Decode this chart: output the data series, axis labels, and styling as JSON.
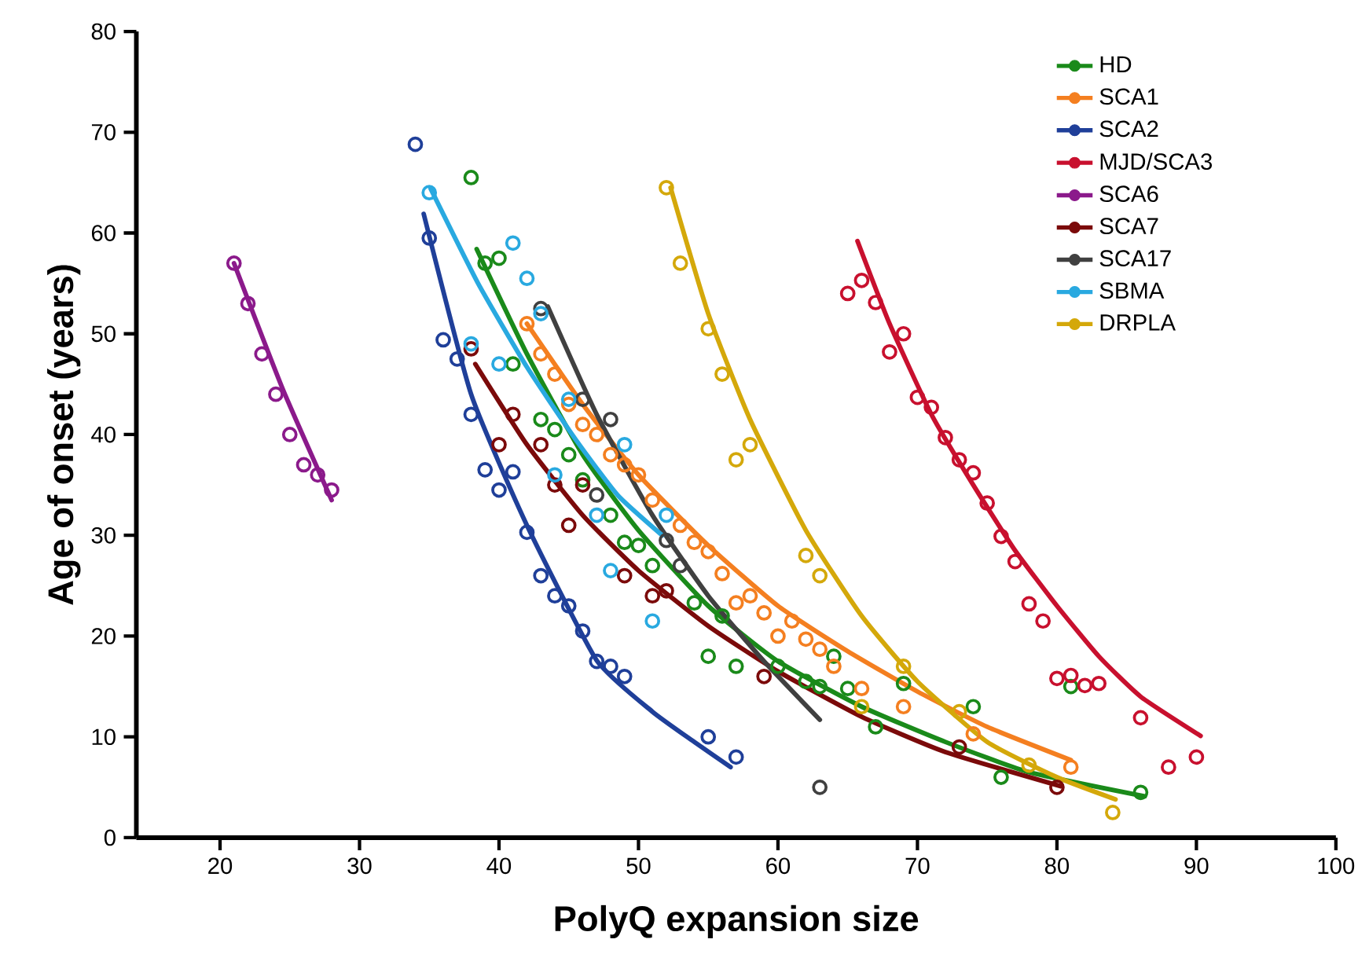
{
  "chart_data": {
    "type": "scatter",
    "xlabel": "PolyQ expansion size",
    "ylabel": "Age of onset (years)",
    "xlim": [
      14,
      100
    ],
    "ylim": [
      0,
      80
    ],
    "xticks": [
      20,
      30,
      40,
      50,
      60,
      70,
      80,
      90,
      100
    ],
    "yticks": [
      0,
      10,
      20,
      30,
      40,
      50,
      60,
      70,
      80
    ],
    "legend": "top right",
    "line_style": "solid",
    "series": [
      {
        "name": "HD",
        "type": "scatter",
        "marker": "circle",
        "color": "#1a8a1a",
        "x": [
          38,
          39,
          40,
          41,
          43,
          44,
          45,
          46,
          48,
          49,
          50,
          51,
          54,
          55,
          56,
          57,
          60,
          62,
          63,
          64,
          65,
          67,
          69,
          74,
          76,
          81,
          86
        ],
        "values": [
          65.5,
          57,
          57.5,
          47,
          41.5,
          40.5,
          38,
          35.5,
          32,
          29.3,
          29,
          27,
          23.3,
          18,
          22,
          17,
          17,
          15.5,
          15,
          18,
          14.8,
          11,
          15.3,
          13,
          6,
          15,
          4.5
        ]
      },
      {
        "type": "line",
        "marker": "none",
        "color": "#1a8a1a",
        "x": [
          38.4,
          42,
          46,
          50,
          55,
          60,
          66,
          72,
          78,
          86.3
        ],
        "values": [
          58.4,
          48,
          38,
          30.5,
          23,
          17.5,
          13,
          9.5,
          6.5,
          4.1
        ]
      },
      {
        "name": "SCA1",
        "type": "scatter",
        "marker": "circle",
        "color": "#f47f20",
        "x": [
          42,
          43,
          44,
          45,
          46,
          47,
          48,
          49,
          50,
          51,
          53,
          54,
          55,
          56,
          57,
          58,
          59,
          60,
          61,
          62,
          63,
          64,
          66,
          69,
          74,
          81
        ],
        "values": [
          51,
          48,
          46,
          43,
          41,
          40,
          38,
          37,
          36,
          33.5,
          31,
          29.3,
          28.4,
          26.2,
          23.3,
          24,
          22.3,
          20,
          21.5,
          19.7,
          18.7,
          17,
          14.8,
          13,
          10.3,
          7
        ]
      },
      {
        "type": "line",
        "marker": "none",
        "color": "#f47f20",
        "x": [
          42,
          46,
          50,
          55,
          60,
          65,
          70,
          75,
          81
        ],
        "values": [
          51,
          43,
          36,
          29,
          23,
          18.5,
          14.5,
          11,
          7.7
        ]
      },
      {
        "name": "SCA2",
        "type": "scatter",
        "marker": "circle",
        "color": "#1f3f99",
        "x": [
          34,
          35,
          36,
          37,
          38,
          39,
          40,
          41,
          42,
          43,
          44,
          45,
          46,
          47,
          48,
          49,
          55,
          57
        ],
        "values": [
          68.8,
          59.5,
          49.4,
          47.5,
          42,
          36.5,
          34.5,
          36.3,
          30.3,
          26,
          24,
          23,
          20.5,
          17.5,
          17,
          16,
          10,
          8
        ]
      },
      {
        "type": "line",
        "marker": "none",
        "color": "#1f3f99",
        "x": [
          34.6,
          38,
          42,
          47,
          51,
          54,
          56.6
        ],
        "values": [
          61.9,
          44,
          31,
          17.6,
          12.5,
          9.5,
          7
        ]
      },
      {
        "name": "MJD/SCA3",
        "type": "scatter",
        "marker": "circle",
        "color": "#c8102e",
        "x": [
          65,
          66,
          67,
          68,
          69,
          70,
          71,
          72,
          73,
          74,
          75,
          76,
          77,
          78,
          79,
          80,
          81,
          82,
          83,
          86,
          88,
          90
        ],
        "values": [
          54,
          55.3,
          53.1,
          48.2,
          50,
          43.7,
          42.7,
          39.7,
          37.5,
          36.2,
          33.2,
          29.9,
          27.4,
          23.2,
          21.5,
          15.8,
          16.1,
          15.1,
          15.3,
          11.9,
          7,
          8
        ]
      },
      {
        "type": "line",
        "marker": "none",
        "color": "#c8102e",
        "x": [
          65.7,
          68,
          71,
          74,
          77,
          80,
          83,
          86,
          90.3
        ],
        "values": [
          59.2,
          51,
          42,
          35,
          28.5,
          23,
          18,
          14,
          10.1
        ]
      },
      {
        "name": "SCA6",
        "type": "scatter",
        "marker": "circle",
        "color": "#8b1a8b",
        "x": [
          21,
          22,
          23,
          24,
          25,
          26,
          27,
          28
        ],
        "values": [
          57,
          53,
          48,
          44,
          40,
          37,
          36,
          34.5
        ]
      },
      {
        "type": "line",
        "marker": "none",
        "color": "#8b1a8b",
        "x": [
          21,
          24.5,
          28
        ],
        "values": [
          57,
          44.5,
          33.5
        ]
      },
      {
        "name": "SCA7",
        "type": "scatter",
        "marker": "circle",
        "color": "#7b0a0a",
        "x": [
          38,
          40,
          41,
          43,
          44,
          45,
          46,
          49,
          51,
          52,
          59,
          73,
          80
        ],
        "values": [
          48.5,
          39,
          42,
          39,
          35,
          31,
          35,
          26,
          24,
          24.5,
          16,
          9,
          5
        ]
      },
      {
        "type": "line",
        "marker": "none",
        "color": "#7b0a0a",
        "x": [
          38.3,
          42,
          46,
          50,
          55,
          60,
          66,
          72,
          80.3
        ],
        "values": [
          47,
          39,
          32,
          26.5,
          21,
          16.5,
          12,
          8.5,
          5.1
        ]
      },
      {
        "name": "SCA17",
        "type": "scatter",
        "marker": "circle",
        "color": "#404040",
        "x": [
          43,
          46,
          47,
          48,
          52,
          53,
          63
        ],
        "values": [
          52.5,
          43.5,
          34,
          41.5,
          29.5,
          27,
          5
        ]
      },
      {
        "type": "line",
        "marker": "none",
        "color": "#404040",
        "x": [
          43.5,
          47,
          51,
          55,
          59,
          63
        ],
        "values": [
          52.7,
          42,
          32,
          24,
          17.5,
          11.7
        ]
      },
      {
        "name": "SBMA",
        "type": "scatter",
        "marker": "circle",
        "color": "#29a9e0",
        "x": [
          35,
          38,
          40,
          41,
          42,
          43,
          44,
          45,
          47,
          48,
          49,
          51,
          52
        ],
        "values": [
          64,
          49,
          47,
          59,
          55.5,
          52,
          36,
          43.5,
          32,
          26.5,
          39,
          21.5,
          32
        ]
      },
      {
        "type": "line",
        "marker": "none",
        "color": "#29a9e0",
        "x": [
          35.1,
          38.5,
          42,
          45.5,
          48.5,
          51.7
        ],
        "values": [
          64.4,
          55,
          46.7,
          39.5,
          34,
          30
        ]
      },
      {
        "name": "DRPLA",
        "type": "scatter",
        "marker": "circle",
        "color": "#d4a80a",
        "x": [
          52,
          53,
          55,
          56,
          57,
          58,
          62,
          63,
          66,
          69,
          73,
          78,
          84
        ],
        "values": [
          64.5,
          57,
          50.5,
          46,
          37.5,
          39,
          28,
          26,
          13,
          17,
          12.5,
          7.2,
          2.5
        ]
      },
      {
        "type": "line",
        "marker": "none",
        "color": "#d4a80a",
        "x": [
          52.3,
          55,
          58,
          62,
          66,
          70,
          75,
          80,
          84.2
        ],
        "values": [
          64.5,
          52,
          41.5,
          30.5,
          22,
          15.5,
          9.5,
          6,
          3.8
        ]
      }
    ]
  }
}
